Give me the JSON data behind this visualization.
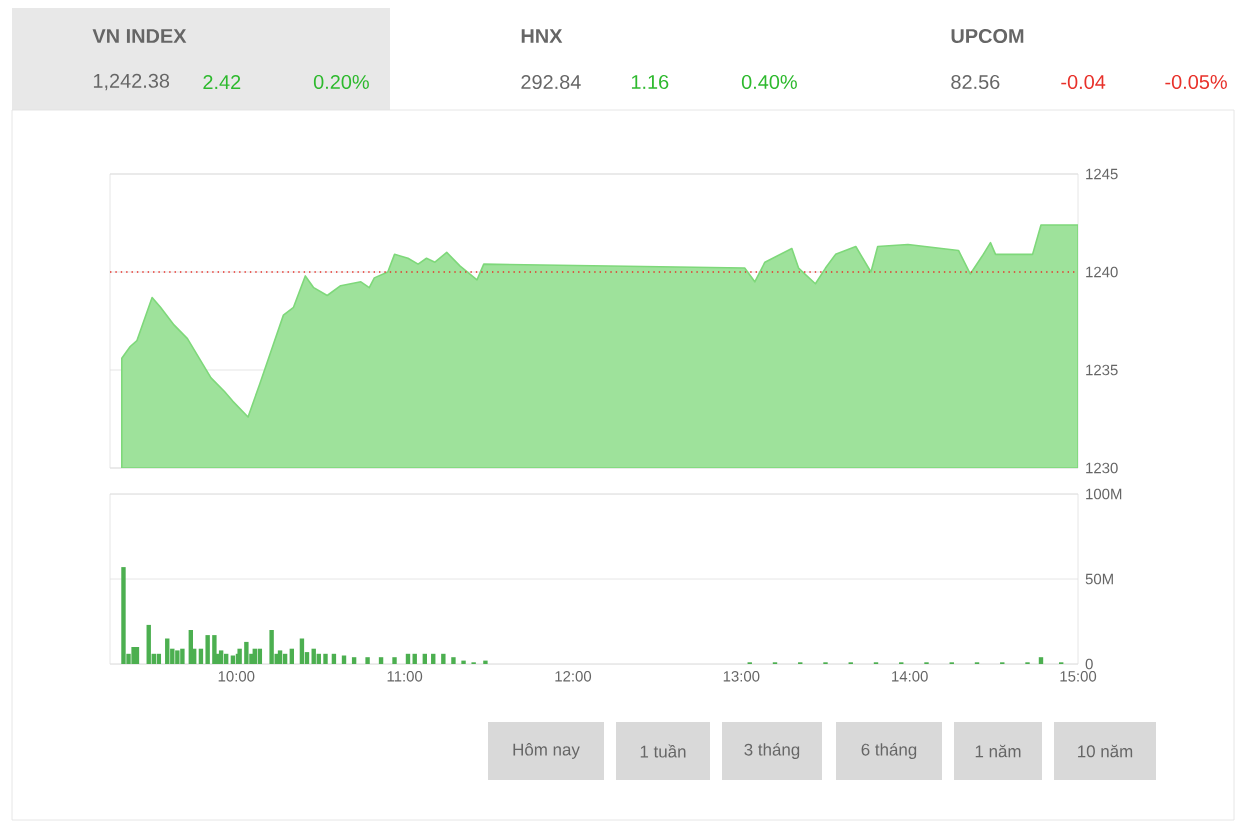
{
  "chart_data": [
    {
      "type": "area",
      "xlim": [
        9.25,
        15
      ],
      "ylim": [
        1230,
        1245
      ],
      "yticks": [
        1230,
        1235,
        1240,
        1245
      ],
      "grid": "y",
      "tick_labels": "y",
      "series": [
        {
          "color": "#7ed87a",
          "x": [
            9.32,
            9.37,
            9.41,
            9.5,
            9.55,
            9.63,
            9.71,
            9.85,
            9.93,
            9.98,
            10.07,
            10.14,
            10.22,
            10.28,
            10.34,
            10.41,
            10.46,
            10.54,
            10.62,
            10.74,
            10.79,
            10.82,
            10.9,
            10.94,
            11.02,
            11.08,
            11.13,
            11.18,
            11.25,
            11.33,
            11.43,
            11.47,
            13.02,
            13.08,
            13.14,
            13.3,
            13.34,
            13.44,
            13.5,
            13.56,
            13.68,
            13.77,
            13.81,
            13.99,
            14.29,
            14.36,
            14.43,
            14.48,
            14.51,
            14.73,
            14.78,
            15.0
          ],
          "values": [
            1235.6,
            1236.2,
            1236.5,
            1238.7,
            1238.2,
            1237.3,
            1236.6,
            1234.6,
            1233.9,
            1233.4,
            1232.6,
            1234.3,
            1236.3,
            1237.8,
            1238.2,
            1239.8,
            1239.2,
            1238.8,
            1239.3,
            1239.5,
            1239.2,
            1239.7,
            1240.0,
            1240.9,
            1240.7,
            1240.4,
            1240.7,
            1240.5,
            1241.0,
            1240.3,
            1239.6,
            1240.4,
            1240.2,
            1239.5,
            1240.5,
            1241.2,
            1240.2,
            1239.4,
            1240.2,
            1240.9,
            1241.3,
            1240.0,
            1241.3,
            1241.4,
            1241.1,
            1239.9,
            1240.8,
            1241.5,
            1240.9,
            1240.9,
            1242.4,
            1242.4
          ]
        }
      ],
      "ref_lines": [
        {
          "axis": "y",
          "value": 1240,
          "color": "#e8312a",
          "line_style": "dotted"
        }
      ]
    },
    {
      "type": "bar",
      "xlim": [
        9.25,
        15
      ],
      "ylim": [
        0,
        100
      ],
      "grid": "y",
      "xticks": [
        {
          "value": 10,
          "label": "10:00"
        },
        {
          "value": 11,
          "label": "11:00"
        },
        {
          "value": 12,
          "label": "12:00"
        },
        {
          "value": 13,
          "label": "13:00"
        },
        {
          "value": 14,
          "label": "14:00"
        },
        {
          "value": 15,
          "label": "15:00"
        }
      ],
      "yticks": [
        0,
        {
          "value": 50,
          "label": "50M"
        },
        {
          "value": 100,
          "label": "100M"
        }
      ],
      "series": [
        {
          "color": "#4caf50",
          "x": [
            9.33,
            9.36,
            9.39,
            9.41,
            9.48,
            9.51,
            9.54,
            9.59,
            9.62,
            9.65,
            9.68,
            9.73,
            9.75,
            9.79,
            9.83,
            9.87,
            9.89,
            9.91,
            9.94,
            9.98,
            10.01,
            10.02,
            10.06,
            10.09,
            10.11,
            10.14,
            10.21,
            10.24,
            10.26,
            10.29,
            10.33,
            10.39,
            10.42,
            10.46,
            10.49,
            10.53,
            10.58,
            10.64,
            10.7,
            10.78,
            10.86,
            10.94,
            11.02,
            11.06,
            11.12,
            11.17,
            11.23,
            11.29,
            11.35,
            11.41,
            11.48,
            13.05,
            13.2,
            13.35,
            13.5,
            13.65,
            13.8,
            13.95,
            14.1,
            14.25,
            14.4,
            14.55,
            14.7,
            14.78,
            14.9
          ],
          "values": [
            57,
            6,
            10,
            10,
            23,
            6,
            6,
            15,
            9,
            8,
            9,
            20,
            9,
            9,
            17,
            17,
            6,
            8,
            6,
            5,
            6,
            9,
            13,
            6,
            9,
            9,
            20,
            6,
            8,
            6,
            9,
            15,
            7,
            9,
            6,
            6,
            6,
            5,
            4,
            4,
            4,
            4,
            6,
            6,
            6,
            6,
            6,
            4,
            2,
            1,
            2,
            1,
            1,
            1,
            1,
            1,
            1,
            1,
            1,
            1,
            1,
            1,
            1,
            4,
            1
          ]
        }
      ]
    },
    {
      "type": "other",
      "colors": [
        "#2db92d",
        "#2db92d",
        "#e8312a"
      ],
      "annotations": [
        "VN INDEX",
        "1,242.38",
        "2.42",
        "0.20%",
        "HNX",
        "292.84",
        "1.16",
        "0.40%",
        "UPCOM",
        "82.56",
        "-0.04",
        "-0.05%",
        "Hôm nay",
        "1 tuần",
        "3 tháng",
        "6 tháng",
        "1 năm",
        "10 năm"
      ]
    }
  ]
}
